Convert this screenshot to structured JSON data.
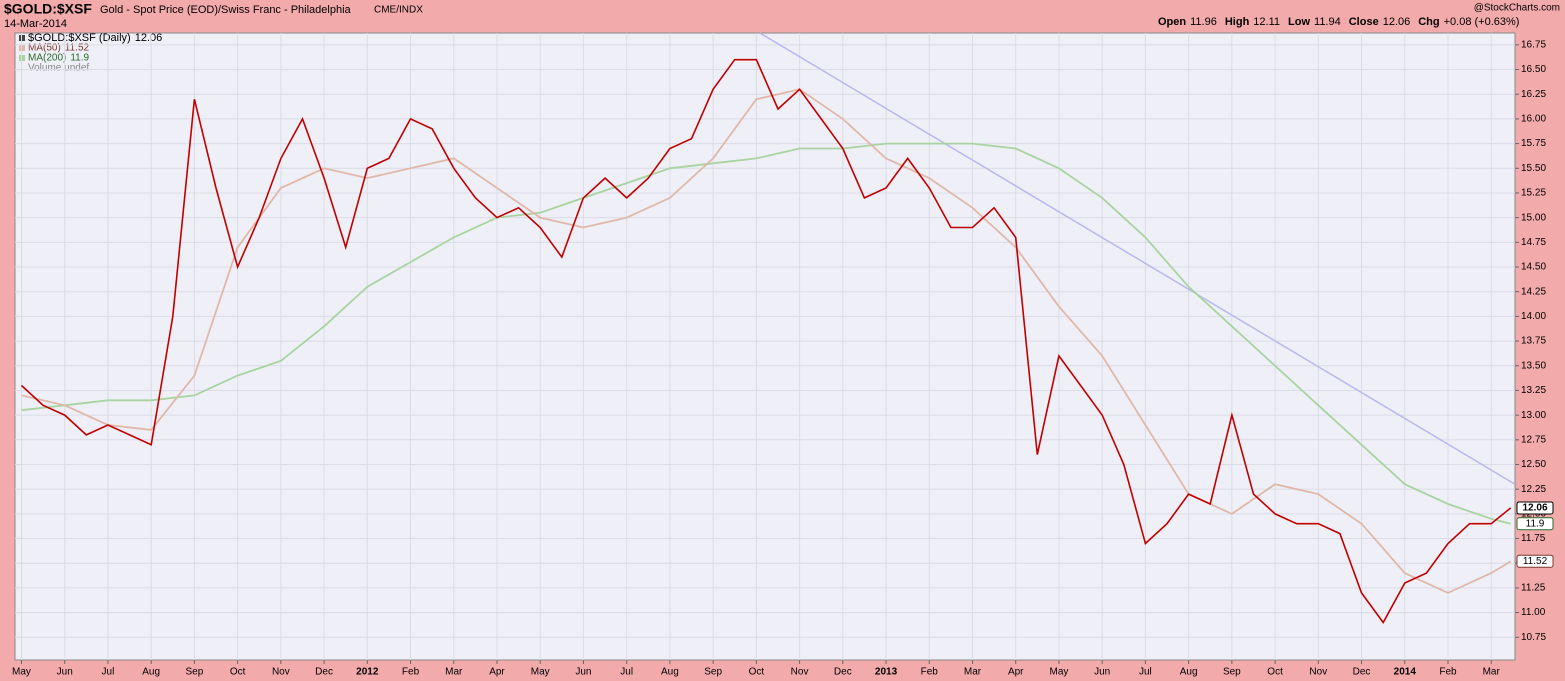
{
  "chart_data": {
    "type": "line",
    "symbol": "$GOLD:$XSF",
    "title": "Gold - Spot Price (EOD)/Swiss Franc - Philadelphia",
    "exchange": "CME/INDX",
    "date": "14-Mar-2014",
    "source": "@StockCharts.com",
    "quote": [
      {
        "label": "Open",
        "value": "11.96"
      },
      {
        "label": "High",
        "value": "12.11"
      },
      {
        "label": "Low",
        "value": "11.94"
      },
      {
        "label": "Close",
        "value": "12.06"
      },
      {
        "label": "Chg",
        "value": "+0.08 (+0.63%)"
      }
    ],
    "volume_label": "Volume undef",
    "grid": true,
    "xlim": [
      -0.15,
      34.55
    ],
    "ylim": [
      10.52,
      16.87
    ],
    "xticks": [
      {
        "value": 0,
        "label": "May"
      },
      {
        "value": 1,
        "label": "Jun"
      },
      {
        "value": 2,
        "label": "Jul"
      },
      {
        "value": 3,
        "label": "Aug"
      },
      {
        "value": 4,
        "label": "Sep"
      },
      {
        "value": 5,
        "label": "Oct"
      },
      {
        "value": 6,
        "label": "Nov"
      },
      {
        "value": 7,
        "label": "Dec"
      },
      {
        "value": 8,
        "label": "2012"
      },
      {
        "value": 9,
        "label": "Feb"
      },
      {
        "value": 10,
        "label": "Mar"
      },
      {
        "value": 11,
        "label": "Apr"
      },
      {
        "value": 12,
        "label": "May"
      },
      {
        "value": 13,
        "label": "Jun"
      },
      {
        "value": 14,
        "label": "Jul"
      },
      {
        "value": 15,
        "label": "Aug"
      },
      {
        "value": 16,
        "label": "Sep"
      },
      {
        "value": 17,
        "label": "Oct"
      },
      {
        "value": 18,
        "label": "Nov"
      },
      {
        "value": 19,
        "label": "Dec"
      },
      {
        "value": 20,
        "label": "2013"
      },
      {
        "value": 21,
        "label": "Feb"
      },
      {
        "value": 22,
        "label": "Mar"
      },
      {
        "value": 23,
        "label": "Apr"
      },
      {
        "value": 24,
        "label": "May"
      },
      {
        "value": 25,
        "label": "Jun"
      },
      {
        "value": 26,
        "label": "Jul"
      },
      {
        "value": 27,
        "label": "Aug"
      },
      {
        "value": 28,
        "label": "Sep"
      },
      {
        "value": 29,
        "label": "Oct"
      },
      {
        "value": 30,
        "label": "Nov"
      },
      {
        "value": 31,
        "label": "Dec"
      },
      {
        "value": 32,
        "label": "2014"
      },
      {
        "value": 33,
        "label": "Feb"
      },
      {
        "value": 34,
        "label": "Mar"
      }
    ],
    "yticks": [
      10.75,
      {
        "value": 11,
        "label": "11.00"
      },
      11.25,
      {
        "value": 11.5,
        "label": "11.50"
      },
      11.75,
      {
        "value": 12,
        "label": "12.00"
      },
      12.25,
      {
        "value": 12.5,
        "label": "12.50"
      },
      12.75,
      {
        "value": 13,
        "label": "13.00"
      },
      13.25,
      {
        "value": 13.5,
        "label": "13.50"
      },
      13.75,
      {
        "value": 14,
        "label": "14.00"
      },
      14.25,
      {
        "value": 14.5,
        "label": "14.50"
      },
      14.75,
      {
        "value": 15,
        "label": "15.00"
      },
      15.25,
      {
        "value": 15.5,
        "label": "15.50"
      },
      15.75,
      {
        "value": 16,
        "label": "16.00"
      },
      16.25,
      {
        "value": 16.5,
        "label": "16.50"
      },
      16.75
    ],
    "series": [
      {
        "name": "$GOLD:$XSF (Daily)",
        "last": 12.06,
        "color": "#c00000",
        "flag_color": "#000000",
        "x": [
          0,
          0.5,
          1,
          1.5,
          2,
          2.5,
          3,
          3.5,
          4,
          4.5,
          5,
          5.5,
          6,
          6.5,
          7,
          7.5,
          8,
          8.5,
          9,
          9.5,
          10,
          10.5,
          11,
          11.5,
          12,
          12.5,
          13,
          13.5,
          14,
          14.5,
          15,
          15.5,
          16,
          16.5,
          17,
          17.5,
          18,
          18.5,
          19,
          19.5,
          20,
          20.5,
          21,
          21.5,
          22,
          22.5,
          23,
          23.5,
          24,
          24.5,
          25,
          25.5,
          26,
          26.5,
          27,
          27.5,
          28,
          28.5,
          29,
          29.5,
          30,
          30.5,
          31,
          31.5,
          32,
          32.5,
          33,
          33.5,
          34,
          34.45
        ],
        "values": [
          13.3,
          13.1,
          13.0,
          12.8,
          12.9,
          12.8,
          12.7,
          14.0,
          16.2,
          15.3,
          14.5,
          15.0,
          15.6,
          16.0,
          15.4,
          14.7,
          15.5,
          15.6,
          16.0,
          15.9,
          15.5,
          15.2,
          15.0,
          15.1,
          14.9,
          14.6,
          15.2,
          15.4,
          15.2,
          15.4,
          15.7,
          15.8,
          16.3,
          16.6,
          16.6,
          16.1,
          16.3,
          16.0,
          15.7,
          15.2,
          15.3,
          15.6,
          15.3,
          14.9,
          14.9,
          15.1,
          14.8,
          12.6,
          13.6,
          13.3,
          13.0,
          12.5,
          11.7,
          11.9,
          12.2,
          12.1,
          13.0,
          12.2,
          12.0,
          11.9,
          11.9,
          11.8,
          11.2,
          10.9,
          11.3,
          11.4,
          11.7,
          11.9,
          11.9,
          12.06
        ]
      },
      {
        "name": "MA(50)",
        "last": 11.52,
        "color": "#e0b8a8",
        "flag_color": "#7a3a2a",
        "x": [
          0,
          1,
          2,
          3,
          4,
          5,
          6,
          7,
          8,
          9,
          10,
          11,
          12,
          13,
          14,
          15,
          16,
          17,
          18,
          19,
          20,
          21,
          22,
          23,
          24,
          25,
          26,
          27,
          28,
          29,
          30,
          31,
          32,
          33,
          34,
          34.45
        ],
        "values": [
          13.2,
          13.1,
          12.9,
          12.85,
          13.4,
          14.7,
          15.3,
          15.5,
          15.4,
          15.5,
          15.6,
          15.3,
          15.0,
          14.9,
          15.0,
          15.2,
          15.6,
          16.2,
          16.3,
          16.0,
          15.6,
          15.4,
          15.1,
          14.7,
          14.1,
          13.6,
          12.9,
          12.2,
          12.0,
          12.3,
          12.2,
          11.9,
          11.4,
          11.2,
          11.4,
          11.52
        ]
      },
      {
        "name": "MA(200)",
        "last": 11.9,
        "color": "#a8d4a0",
        "flag_color": "#2a6a2a",
        "x": [
          0,
          1,
          2,
          3,
          4,
          5,
          6,
          7,
          8,
          9,
          10,
          11,
          12,
          13,
          14,
          15,
          16,
          17,
          18,
          19,
          20,
          21,
          22,
          23,
          24,
          25,
          26,
          27,
          28,
          29,
          30,
          31,
          32,
          33,
          34,
          34.45
        ],
        "values": [
          13.05,
          13.1,
          13.15,
          13.15,
          13.2,
          13.4,
          13.55,
          13.9,
          14.3,
          14.55,
          14.8,
          15.0,
          15.05,
          15.2,
          15.35,
          15.5,
          15.55,
          15.6,
          15.7,
          15.7,
          15.75,
          15.75,
          15.75,
          15.7,
          15.5,
          15.2,
          14.8,
          14.3,
          13.9,
          13.5,
          13.1,
          12.7,
          12.3,
          12.1,
          11.95,
          11.9
        ]
      }
    ],
    "trendline": {
      "color": "#b8b8f0",
      "x": [
        17.08,
        34.55
      ],
      "values": [
        16.87,
        12.3
      ]
    }
  }
}
